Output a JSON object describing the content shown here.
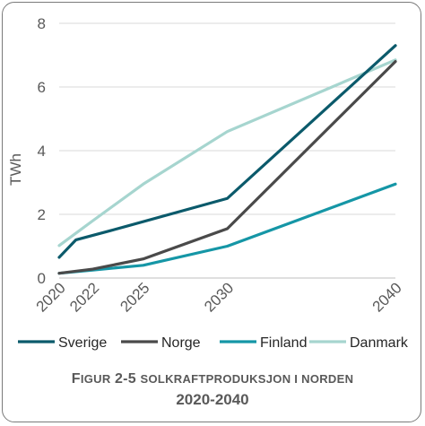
{
  "chart_data": {
    "type": "line",
    "ylabel": "TWh",
    "ylim": [
      0,
      8
    ],
    "yticks": [
      0,
      2,
      4,
      6,
      8
    ],
    "x": [
      2020,
      2022,
      2025,
      2030,
      2040
    ],
    "xticks": [
      "2020",
      "2022",
      "2025",
      "2030",
      "2040"
    ],
    "grid": true,
    "legend_position": "bottom",
    "series": [
      {
        "name": "Sverige",
        "color": "#0b5a6b",
        "x": [
          2020,
          2021,
          2023,
          2030,
          2040
        ],
        "values": [
          0.65,
          1.2,
          1.48,
          2.5,
          7.3
        ]
      },
      {
        "name": "Norge",
        "color": "#4a4a4a",
        "x": [
          2020,
          2022,
          2025,
          2030,
          2040
        ],
        "values": [
          0.15,
          0.28,
          0.6,
          1.55,
          6.8
        ]
      },
      {
        "name": "Finland",
        "color": "#1596a6",
        "x": [
          2020,
          2022,
          2025,
          2030,
          2040
        ],
        "values": [
          0.15,
          0.25,
          0.4,
          1.0,
          2.95
        ]
      },
      {
        "name": "Danmark",
        "color": "#a6d5cf",
        "x": [
          2020,
          2022,
          2025,
          2030,
          2040
        ],
        "values": [
          1.02,
          1.8,
          2.95,
          4.6,
          6.85
        ]
      }
    ]
  },
  "caption": {
    "fig_first": "F",
    "fig_rest": "IGUR",
    "fig_num": "2-5",
    "sub_first": "SOLKRAFTPRODUKSJON I NORDEN",
    "line2": "2020-2040"
  }
}
